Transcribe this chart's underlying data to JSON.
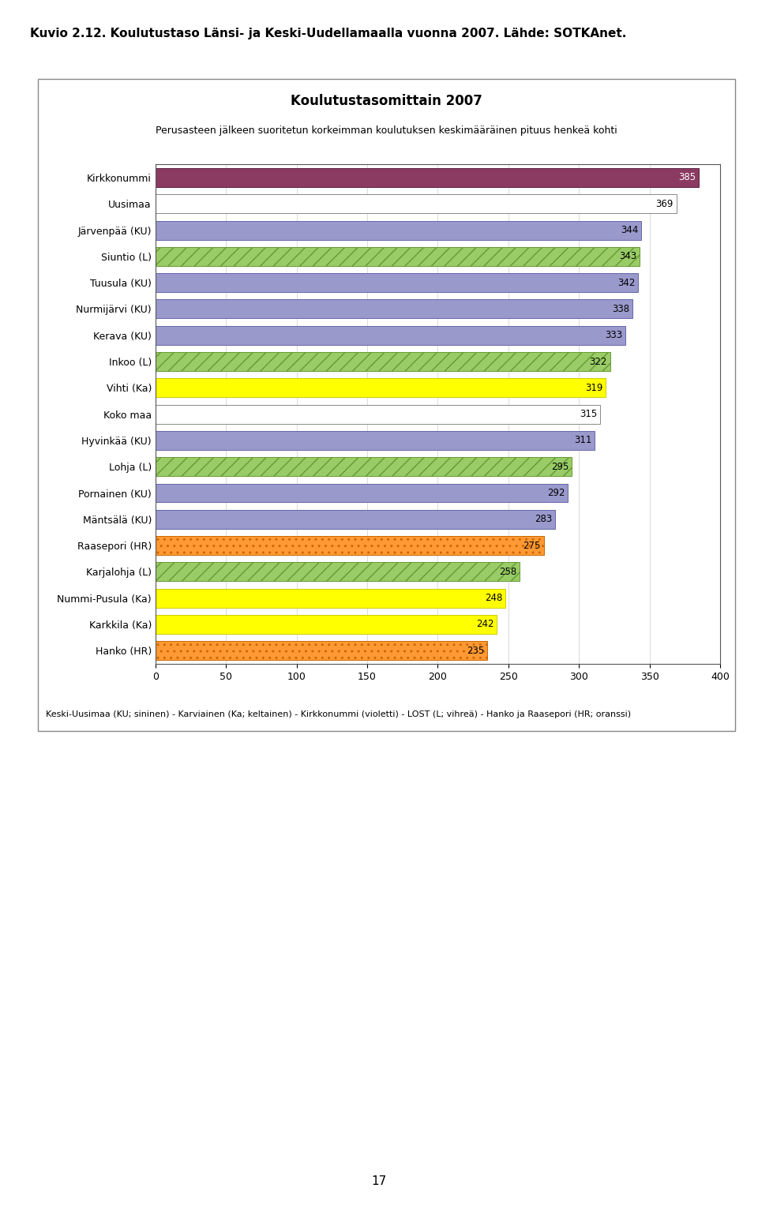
{
  "title": "Koulutustasomittain 2007",
  "subtitle": "Perusasteen jälkeen suoritetun korkeimman koulutuksen keskimääräinen pituus henkeä kohti",
  "page_title": "Kuvio 2.12. Koulutustaso Länsi- ja Keski-Uudellamaalla vuonna 2007. Lähde: SOTKAnet.",
  "categories": [
    "Kirkkonummi",
    "Uusimaa",
    "Järvenpää (KU)",
    "Siuntio (L)",
    "Tuusula (KU)",
    "Nurmijärvi (KU)",
    "Kerava (KU)",
    "Inkoo (L)",
    "Vihti (Ka)",
    "Koko maa",
    "Hyvinkää (KU)",
    "Lohja (L)",
    "Pornainen (KU)",
    "Mäntsälä (KU)",
    "Raasepori (HR)",
    "Karjalohja (L)",
    "Nummi-Pusula (Ka)",
    "Karkkila (Ka)",
    "Hanko (HR)"
  ],
  "values": [
    385,
    369,
    344,
    343,
    342,
    338,
    333,
    322,
    319,
    315,
    311,
    295,
    292,
    283,
    275,
    258,
    248,
    242,
    235
  ],
  "bar_colors": [
    "#8B3A62",
    "#ffffff",
    "#9999CC",
    "#99CC66",
    "#9999CC",
    "#9999CC",
    "#9999CC",
    "#99CC66",
    "#FFFF00",
    "#ffffff",
    "#9999CC",
    "#99CC66",
    "#9999CC",
    "#9999CC",
    "#FF9933",
    "#99CC66",
    "#FFFF00",
    "#FFFF00",
    "#FF9933"
  ],
  "hatch_patterns": [
    "",
    "",
    "",
    "//",
    "",
    "",
    "",
    "//",
    "",
    "",
    "",
    "//",
    "",
    "",
    "..",
    "//",
    "",
    "",
    ".."
  ],
  "edge_colors": [
    "#5c2244",
    "#888888",
    "#6666AA",
    "#669933",
    "#6666AA",
    "#6666AA",
    "#6666AA",
    "#669933",
    "#CCCC00",
    "#888888",
    "#6666AA",
    "#669933",
    "#6666AA",
    "#6666AA",
    "#CC6600",
    "#669933",
    "#CCCC00",
    "#CCCC00",
    "#CC6600"
  ],
  "xlim": [
    0,
    400
  ],
  "xticks": [
    0,
    50,
    100,
    150,
    200,
    250,
    300,
    350,
    400
  ],
  "footer": "Keski-Uusimaa (KU; sininen) - Karviainen (Ka; keltainen) - Kirkkonummi (violetti) - LOST (L; vihreä) - Hanko ja Raasepori (HR; oranssi)",
  "page_number": "17",
  "background_color": "#ffffff",
  "title_fontsize": 12,
  "subtitle_fontsize": 9,
  "label_fontsize": 9,
  "value_fontsize": 8.5,
  "footer_fontsize": 8,
  "page_title_fontsize": 11
}
